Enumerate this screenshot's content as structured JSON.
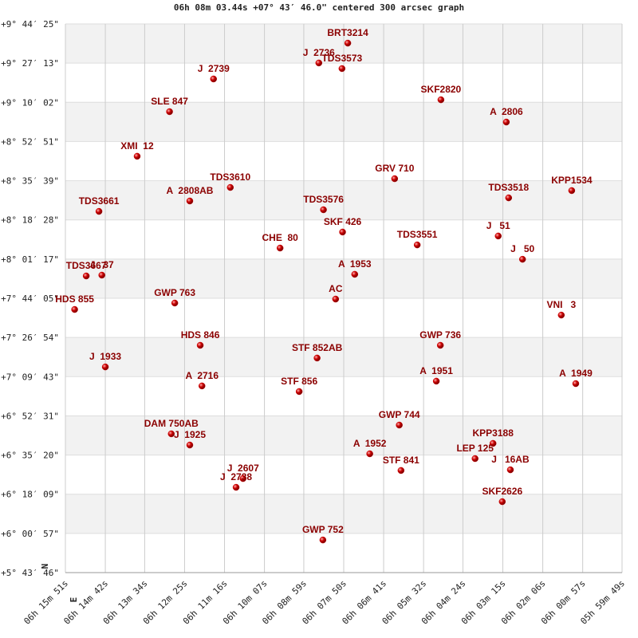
{
  "chart_data": {
    "type": "scatter",
    "title": "06h 08m 03.44s +07° 43′ 46.0\" centered 300 arcsec graph",
    "xlabel": "E",
    "ylabel": "N",
    "color": "#cc0000",
    "xlim": [
      22551,
      21589
    ],
    "ylim": [
      5.7294,
      9.7403
    ],
    "xticks": [
      {
        "value": 22551,
        "label": "06h 15m 51s"
      },
      {
        "value": 22482,
        "label": "06h 14m 42s"
      },
      {
        "value": 22414,
        "label": "06h 13m 34s"
      },
      {
        "value": 22345,
        "label": "06h 12m 25s"
      },
      {
        "value": 22276,
        "label": "06h 11m 16s"
      },
      {
        "value": 22207,
        "label": "06h 10m 07s"
      },
      {
        "value": 22139,
        "label": "06h 08m 59s"
      },
      {
        "value": 22070,
        "label": "06h 07m 50s"
      },
      {
        "value": 22001,
        "label": "06h 06m 41s"
      },
      {
        "value": 21932,
        "label": "06h 05m 32s"
      },
      {
        "value": 21864,
        "label": "06h 04m 24s"
      },
      {
        "value": 21795,
        "label": "06h 03m 15s"
      },
      {
        "value": 21726,
        "label": "06h 02m 06s"
      },
      {
        "value": 21657,
        "label": "06h 00m 57s"
      },
      {
        "value": 21589,
        "label": "05h 59m 49s"
      }
    ],
    "yticks": [
      {
        "value": 9.7403,
        "label": "+9° 44′ 25\""
      },
      {
        "value": 9.4536,
        "label": "+9° 27′ 13\""
      },
      {
        "value": 9.1672,
        "label": "+9° 10′ 02\""
      },
      {
        "value": 8.8808,
        "label": "+8° 52′ 51\""
      },
      {
        "value": 8.5942,
        "label": "+8° 35′ 39\""
      },
      {
        "value": 8.3078,
        "label": "+8° 18′ 28\""
      },
      {
        "value": 8.0214,
        "label": "+8° 01′ 17\""
      },
      {
        "value": 7.7347,
        "label": "+7° 44′ 05\""
      },
      {
        "value": 7.4483,
        "label": "+7° 26′ 54\""
      },
      {
        "value": 7.1619,
        "label": "+7° 09′ 43\""
      },
      {
        "value": 6.8753,
        "label": "+6° 52′ 31\""
      },
      {
        "value": 6.5889,
        "label": "+6° 35′ 20\""
      },
      {
        "value": 6.3025,
        "label": "+6° 18′ 09\""
      },
      {
        "value": 6.0158,
        "label": "+6° 00′ 57\""
      },
      {
        "value": 5.7294,
        "label": "+5° 43′ 46\""
      }
    ],
    "labels": [
      "BRT3214",
      "J  2736",
      "TDS3573",
      "J  2739",
      "SLE 847",
      "SKF2820",
      "A  2806",
      "XMI  12",
      "TDS3610",
      "A  2808AB",
      "GRV 710",
      "TDS3518",
      "KPP1534",
      "TDS3661",
      "TDS3576",
      "SKF 426",
      "CHE  80",
      "TDS3551",
      "J   51",
      "J   50",
      "TDS3667",
      "J   37",
      "A  1953",
      "AC",
      "HDS 855",
      "GWP 763",
      "VNI   3",
      "HDS 846",
      "GWP 736",
      "STF 852AB",
      "J  1933",
      "A  2716",
      "STF 856",
      "A  1951",
      "A  1949",
      "GWP 744",
      "DAM 750AB",
      "J  1925",
      "A  1952",
      "KPP3188",
      "LEP 125",
      "J   16AB",
      "STF 841",
      "J  2607",
      "J  2738",
      "SKF2626",
      "GWP 752"
    ],
    "x": [
      22063,
      22113,
      22073,
      22295,
      22371,
      21902,
      21789,
      22427,
      22266,
      22336,
      21982,
      21785,
      21676,
      22493,
      22105,
      22072,
      22180,
      21943,
      21803,
      21761,
      22515,
      22488,
      22051,
      22084,
      22535,
      22362,
      21694,
      22318,
      21903,
      22116,
      22482,
      22315,
      22147,
      21910,
      21669,
      21974,
      22368,
      22336,
      22025,
      21812,
      21843,
      21782,
      21971,
      22244,
      22256,
      21796,
      22106
    ],
    "values": [
      9.6,
      9.455,
      9.414,
      9.338,
      9.099,
      9.186,
      9.023,
      8.773,
      8.545,
      8.446,
      8.609,
      8.469,
      8.522,
      8.37,
      8.382,
      8.219,
      8.102,
      8.125,
      8.19,
      8.02,
      7.898,
      7.904,
      7.91,
      7.729,
      7.653,
      7.7,
      7.612,
      7.391,
      7.391,
      7.298,
      7.233,
      7.094,
      7.053,
      7.129,
      7.111,
      6.808,
      6.744,
      6.662,
      6.598,
      6.674,
      6.563,
      6.481,
      6.476,
      6.417,
      6.353,
      6.248,
      5.968
    ]
  }
}
